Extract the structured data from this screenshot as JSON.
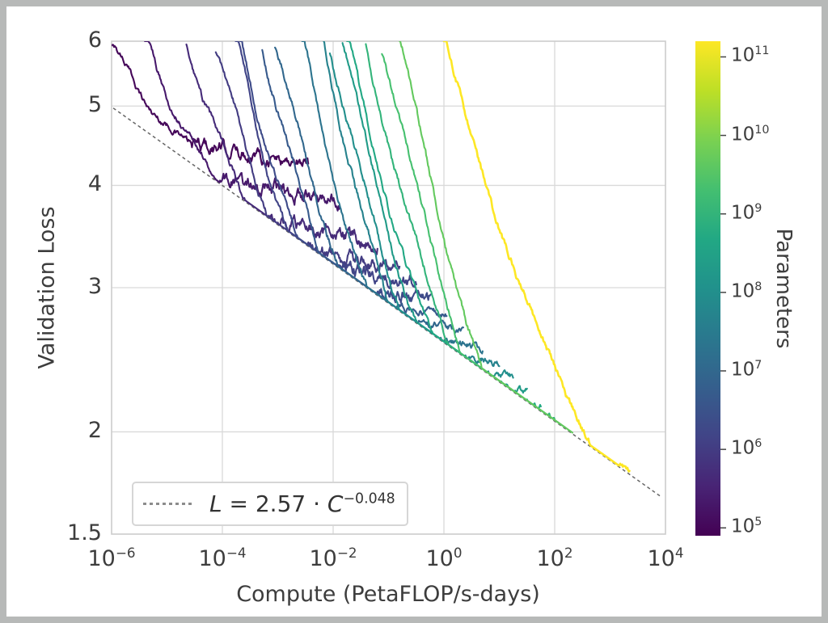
{
  "chart_data": {
    "type": "line",
    "title": "",
    "xlabel": "Compute (PetaFLOP/s-days)",
    "ylabel": "Validation Loss",
    "x_scale": "log",
    "y_scale": "log",
    "x_range_log10": [
      -6,
      4
    ],
    "y_range": [
      1.5,
      6
    ],
    "grid": true,
    "grid_color": "#d9d9d9",
    "frame_color": "#cccccc",
    "x_ticks": [
      {
        "label_base": "10",
        "label_exp": "−6",
        "log10": -6
      },
      {
        "label_base": "10",
        "label_exp": "−4",
        "log10": -4
      },
      {
        "label_base": "10",
        "label_exp": "−2",
        "log10": -2
      },
      {
        "label_base": "10",
        "label_exp": "0",
        "log10": 0
      },
      {
        "label_base": "10",
        "label_exp": "2",
        "log10": 2
      },
      {
        "label_base": "10",
        "label_exp": "4",
        "log10": 4
      }
    ],
    "y_ticks": [
      {
        "label": "6",
        "value": 6
      },
      {
        "label": "5",
        "value": 5
      },
      {
        "label": "4",
        "value": 4
      },
      {
        "label": "3",
        "value": 3
      },
      {
        "label": "2",
        "value": 2
      },
      {
        "label": "1.5",
        "value": 1.5
      }
    ],
    "fit_line": {
      "label": "L = 2.57 · C^−0.048",
      "coefficient": 2.57,
      "exponent": -0.048,
      "style": "dashed",
      "color": "#666666",
      "x_log10_start": -5.97,
      "x_log10_end": 3.93
    },
    "legend_position": "lower left",
    "colorbar": {
      "label": "Parameters",
      "colormap": "viridis",
      "vmin_log10": 4.9,
      "vmax_log10": 11.2,
      "tick_exponents": [
        "5",
        "6",
        "7",
        "8",
        "9",
        "10",
        "11"
      ],
      "viridis_stops": [
        "#440154",
        "#482475",
        "#414487",
        "#355f8d",
        "#2a788e",
        "#21918c",
        "#22a884",
        "#44bf70",
        "#7ad151",
        "#bddf26",
        "#fde725"
      ]
    },
    "curves": [
      {
        "params_log10": 5.0,
        "x_log10_start": -6.1,
        "x_log10_knee": -4.55,
        "final_loss": 4.5,
        "x_log10_end": -2.45
      },
      {
        "params_log10": 5.33,
        "x_log10_start": -5.4,
        "x_log10_knee": -4.0,
        "final_loss": 4.06,
        "x_log10_end": -1.88
      },
      {
        "params_log10": 5.67,
        "x_log10_start": -4.65,
        "x_log10_knee": -3.3,
        "final_loss": 3.62,
        "x_log10_end": -1.2
      },
      {
        "params_log10": 6.0,
        "x_log10_start": -4.12,
        "x_log10_knee": -2.85,
        "final_loss": 3.36,
        "x_log10_end": -0.8
      },
      {
        "params_log10": 6.17,
        "x_log10_start": -3.76,
        "x_log10_knee": -2.55,
        "final_loss": 3.22,
        "x_log10_end": -0.5
      },
      {
        "params_log10": 6.33,
        "x_log10_start": -3.68,
        "x_log10_knee": -2.25,
        "final_loss": 3.06,
        "x_log10_end": -0.22
      },
      {
        "params_log10": 6.67,
        "x_log10_start": -3.28,
        "x_log10_knee": -1.85,
        "final_loss": 2.93,
        "x_log10_end": 0.05
      },
      {
        "params_log10": 7.0,
        "x_log10_start": -3.05,
        "x_log10_knee": -1.45,
        "final_loss": 2.8,
        "x_log10_end": 0.35
      },
      {
        "params_log10": 7.33,
        "x_log10_start": -2.56,
        "x_log10_knee": -1.05,
        "final_loss": 2.66,
        "x_log10_end": 0.7
      },
      {
        "params_log10": 7.67,
        "x_log10_start": -2.17,
        "x_log10_knee": -0.65,
        "final_loss": 2.54,
        "x_log10_end": 1.0
      },
      {
        "params_log10": 8.0,
        "x_log10_start": -2.06,
        "x_log10_knee": -0.35,
        "final_loss": 2.44,
        "x_log10_end": 1.25
      },
      {
        "params_log10": 8.33,
        "x_log10_start": -1.83,
        "x_log10_knee": -0.05,
        "final_loss": 2.34,
        "x_log10_end": 1.5
      },
      {
        "params_log10": 8.67,
        "x_log10_start": -1.75,
        "x_log10_knee": 0.3,
        "final_loss": 2.24,
        "x_log10_end": 1.75
      },
      {
        "params_log10": 9.0,
        "x_log10_start": -1.41,
        "x_log10_knee": 0.6,
        "final_loss": 2.15,
        "x_log10_end": 2.0
      },
      {
        "params_log10": 9.33,
        "x_log10_start": -1.12,
        "x_log10_knee": 0.9,
        "final_loss": 2.07,
        "x_log10_end": 2.2
      },
      {
        "params_log10": 9.67,
        "x_log10_start": -0.8,
        "x_log10_knee": 1.2,
        "final_loss": 2.0,
        "x_log10_end": 2.32
      },
      {
        "params_log10": 11.2,
        "x_log10_start": 0.0,
        "x_log10_knee": 3.0,
        "final_loss": 1.81,
        "x_log10_end": 3.35
      }
    ]
  },
  "legend": {
    "formula_lhs": "L",
    "formula_mid": " = 2.57 · ",
    "formula_base": "C",
    "formula_exp": "−0.048"
  }
}
